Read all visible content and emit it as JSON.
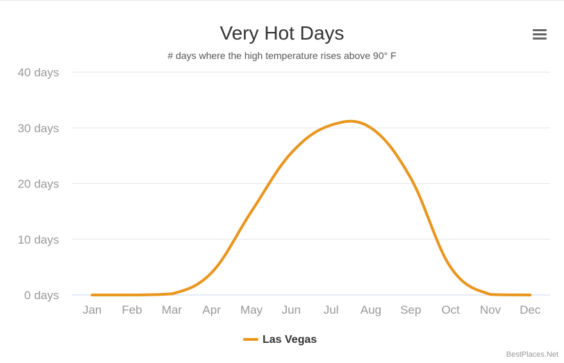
{
  "header": {
    "title": "Very Hot Days",
    "subtitle": "# days where the high temperature rises above 90° F",
    "credit": "BestPlaces.Net"
  },
  "menu": {
    "icon": "hamburger-menu-icon"
  },
  "colors": {
    "series": "#e8961e",
    "grid": "#e6e6e6",
    "axis_text": "#999999"
  },
  "chart_data": {
    "type": "line",
    "title": "Very Hot Days",
    "subtitle": "# days where the high temperature rises above 90° F",
    "categories": [
      "Jan",
      "Feb",
      "Mar",
      "Apr",
      "May",
      "Jun",
      "Jul",
      "Aug",
      "Sep",
      "Oct",
      "Nov",
      "Dec"
    ],
    "y_ticks": [
      "0 days",
      "10 days",
      "20 days",
      "30 days",
      "40 days"
    ],
    "ylim": [
      0,
      40
    ],
    "grid": true,
    "legend_position": "bottom-center",
    "series": [
      {
        "name": "Las Vegas",
        "values": [
          0,
          0,
          0.2,
          4,
          15,
          25.5,
          30.5,
          30,
          21,
          5,
          0.1,
          0
        ]
      }
    ]
  }
}
